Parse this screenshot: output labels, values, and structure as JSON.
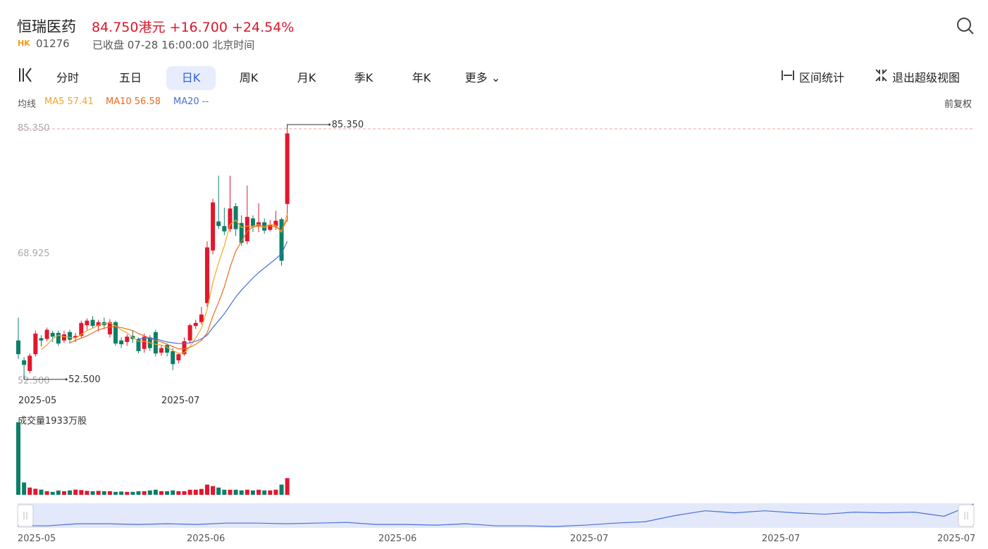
{
  "header": {
    "name": "恒瑞医药",
    "price": "84.750港元",
    "change": "+16.700",
    "change_pct": "+24.54%",
    "market": "HK",
    "code": "01276",
    "status": "已收盘 07-28 16:00:00 北京时间"
  },
  "tabs": [
    "分时",
    "五日",
    "日K",
    "周K",
    "月K",
    "季K",
    "年K",
    "更多"
  ],
  "tools": [
    "区间统计",
    "退出超级视图"
  ],
  "ma_legend": {
    "title": "均线",
    "items": [
      "MA5 57.41",
      "MA10 56.58",
      "MA20 --"
    ],
    "adjust": "前复权"
  },
  "chart_data": {
    "type": "candlestick",
    "categories": [
      "2025-05",
      null,
      null,
      null,
      null,
      null,
      null,
      null,
      null,
      null,
      null,
      null,
      null,
      null,
      null,
      null,
      null,
      null,
      null,
      null,
      null,
      null,
      null,
      null,
      null,
      "2025-07",
      null,
      null,
      null,
      null,
      null,
      null,
      null,
      null,
      null,
      null,
      null,
      null,
      null,
      null,
      null,
      null,
      null,
      null,
      null,
      null,
      null,
      null
    ],
    "open": [
      57.6,
      55.0,
      53.6,
      55.8,
      57.9,
      57.8,
      58.6,
      58.6,
      57.6,
      58.7,
      58.0,
      58.2,
      59.6,
      60.3,
      59.5,
      60.0,
      58.4,
      60.0,
      57.6,
      57.4,
      58.2,
      57.8,
      56.5,
      58.0,
      58.7,
      56.0,
      57.0,
      56.2,
      55.0,
      55.8,
      57.6,
      59.5,
      60.0,
      62.5,
      69.4,
      73.2,
      72.6,
      72.2,
      75.2,
      73.0,
      70.6,
      73.6,
      72.6,
      73.1,
      72.1,
      72.6,
      73.5,
      75.5
    ],
    "high": [
      60.6,
      55.4,
      55.9,
      58.9,
      58.3,
      59.3,
      58.9,
      58.9,
      58.9,
      59.0,
      58.6,
      60.2,
      60.5,
      60.8,
      60.3,
      60.6,
      60.4,
      60.2,
      58.0,
      58.4,
      58.9,
      58.0,
      58.5,
      58.3,
      59.0,
      57.0,
      57.2,
      56.6,
      56.0,
      58.0,
      59.8,
      60.3,
      62.0,
      70.6,
      76.2,
      79.2,
      75.0,
      79.2,
      75.6,
      74.0,
      77.9,
      74.0,
      75.6,
      73.6,
      73.4,
      74.6,
      73.7,
      85.35
    ],
    "low": [
      55.2,
      52.5,
      53.3,
      55.5,
      56.8,
      57.5,
      57.4,
      56.9,
      57.3,
      57.2,
      57.4,
      57.9,
      59.0,
      59.2,
      58.8,
      59.1,
      58.0,
      56.9,
      56.6,
      56.9,
      57.3,
      55.9,
      56.0,
      56.2,
      55.5,
      55.6,
      55.5,
      53.7,
      54.6,
      55.6,
      57.2,
      59.1,
      59.7,
      62.0,
      68.9,
      72.2,
      71.4,
      71.8,
      71.3,
      70.0,
      70.2,
      71.8,
      71.8,
      71.6,
      71.9,
      72.1,
      67.4,
      73.2
    ],
    "close": [
      55.8,
      54.4,
      55.6,
      58.5,
      57.6,
      59.0,
      58.1,
      57.2,
      58.4,
      57.7,
      58.2,
      59.9,
      60.2,
      59.5,
      60.0,
      59.6,
      60.0,
      57.2,
      57.1,
      58.1,
      57.8,
      56.2,
      58.1,
      56.6,
      55.9,
      56.6,
      56.0,
      54.5,
      55.8,
      57.5,
      59.6,
      59.9,
      61.0,
      69.8,
      75.7,
      72.6,
      71.9,
      74.9,
      72.2,
      70.4,
      73.8,
      72.5,
      73.1,
      72.0,
      72.8,
      73.3,
      68.05,
      84.75
    ],
    "ma": [
      {
        "name": "MA5",
        "color": "#f5a623",
        "values": [
          null,
          null,
          null,
          null,
          56.4,
          57.0,
          57.8,
          58.3,
          58.1,
          58.0,
          57.9,
          58.4,
          58.9,
          59.2,
          59.6,
          59.8,
          59.9,
          59.5,
          59.0,
          58.6,
          58.0,
          57.5,
          57.5,
          57.3,
          57.1,
          57.0,
          56.7,
          56.3,
          55.9,
          56.0,
          56.8,
          57.9,
          59.2,
          61.7,
          65.2,
          67.8,
          70.0,
          72.8,
          73.4,
          72.4,
          72.6,
          72.6,
          72.8,
          72.4,
          72.8,
          72.7,
          71.8,
          74.2
        ]
      },
      {
        "name": "MA10",
        "color": "#ef6a1a",
        "values": [
          null,
          null,
          null,
          null,
          null,
          null,
          null,
          null,
          null,
          57.3,
          57.6,
          57.9,
          58.2,
          58.6,
          59.0,
          59.2,
          59.4,
          59.4,
          59.3,
          59.1,
          58.9,
          58.5,
          58.2,
          57.9,
          57.6,
          57.4,
          57.1,
          56.8,
          56.5,
          56.5,
          56.7,
          57.1,
          57.6,
          58.6,
          60.8,
          62.6,
          64.6,
          67.2,
          69.3,
          70.6,
          71.9,
          72.5,
          72.6,
          72.6,
          72.6,
          72.5,
          72.0,
          73.5
        ]
      },
      {
        "name": "MA20",
        "color": "#4a6fd8",
        "values": [
          null,
          null,
          null,
          null,
          null,
          null,
          null,
          null,
          null,
          null,
          null,
          null,
          null,
          null,
          null,
          null,
          null,
          null,
          null,
          null,
          null,
          57.8,
          57.9,
          57.9,
          57.8,
          57.6,
          57.4,
          57.3,
          57.2,
          57.2,
          57.3,
          57.5,
          57.8,
          58.3,
          59.3,
          60.2,
          61.1,
          62.2,
          63.3,
          64.2,
          65.0,
          65.8,
          66.5,
          67.1,
          67.7,
          68.3,
          69.0,
          70.6
        ]
      }
    ],
    "up_color": "#e3162c",
    "down_color": "#0b7f68",
    "ylim": [
      52.5,
      85.35
    ],
    "yticks": [
      {
        "value": 85.35,
        "label": "85.350"
      },
      {
        "value": 68.925,
        "label": "68.925"
      },
      {
        "value": 52.5,
        "label": "52.500"
      }
    ],
    "max_label": {
      "value": 85.35,
      "label": "85.350"
    },
    "min_label": {
      "value": 52.5,
      "label": "52.500"
    },
    "volume_title": "成交量1933万股",
    "volume": [
      8400,
      1430,
      840,
      700,
      600,
      420,
      340,
      500,
      420,
      510,
      600,
      550,
      460,
      420,
      460,
      420,
      420,
      340,
      380,
      340,
      340,
      420,
      420,
      510,
      590,
      420,
      420,
      510,
      420,
      420,
      590,
      590,
      680,
      1180,
      1010,
      840,
      590,
      590,
      590,
      510,
      590,
      510,
      590,
      510,
      510,
      590,
      1180,
      1933
    ]
  },
  "navigator": {
    "labels": [
      "2025-05",
      "2025-06",
      "2025-06",
      "2025-07",
      "2025-07",
      "2025-07"
    ],
    "values": [
      2,
      2,
      5,
      5,
      4,
      5,
      4,
      6,
      6,
      5,
      6,
      7,
      4,
      4,
      3,
      5,
      2,
      2,
      1,
      3,
      6,
      8,
      17,
      24,
      21,
      24,
      21,
      19,
      22,
      21,
      22,
      16,
      34
    ]
  }
}
